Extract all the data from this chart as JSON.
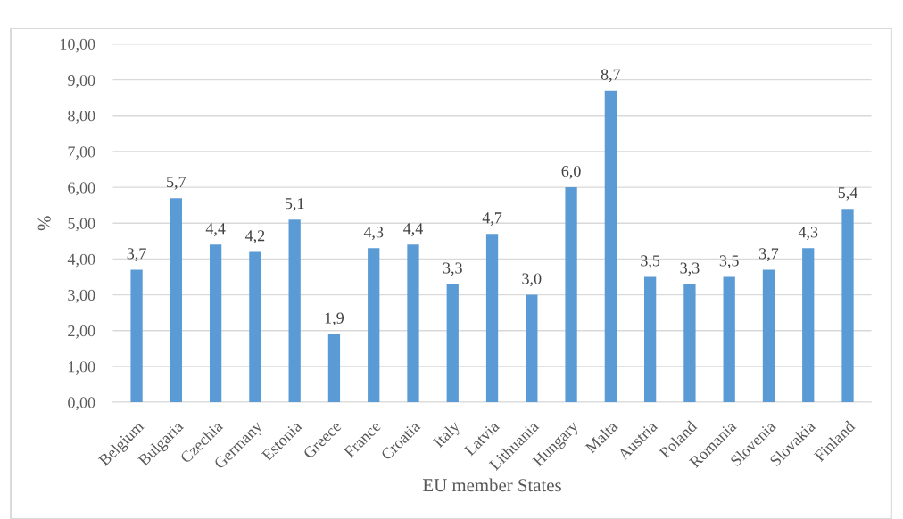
{
  "chart_data": {
    "type": "bar",
    "xlabel": "EU member States",
    "ylabel": "%",
    "categories": [
      "Belgium",
      "Bulgaria",
      "Czechia",
      "Germany",
      "Estonia",
      "Greece",
      "France",
      "Croatia",
      "Italy",
      "Latvia",
      "Lithuania",
      "Hungary",
      "Malta",
      "Austria",
      "Poland",
      "Romania",
      "Slovenia",
      "Slovakia",
      "Finland"
    ],
    "values": [
      3.7,
      5.7,
      4.4,
      4.2,
      5.1,
      1.9,
      4.3,
      4.4,
      3.3,
      4.7,
      3.0,
      6.0,
      8.7,
      3.5,
      3.3,
      3.5,
      3.7,
      4.3,
      5.4
    ],
    "value_labels": [
      "3,7",
      "5,7",
      "4,4",
      "4,2",
      "5,1",
      "1,9",
      "4,3",
      "4,4",
      "3,3",
      "4,7",
      "3,0",
      "6,0",
      "8,7",
      "3,5",
      "3,3",
      "3,5",
      "3,7",
      "4,3",
      "5,4"
    ],
    "color": "#5b9bd5",
    "ylim": [
      0,
      10
    ],
    "yticks": [
      {
        "value": 0,
        "label": "0,00"
      },
      {
        "value": 1,
        "label": "1,00"
      },
      {
        "value": 2,
        "label": "2,00"
      },
      {
        "value": 3,
        "label": "3,00"
      },
      {
        "value": 4,
        "label": "4,00"
      },
      {
        "value": 5,
        "label": "5,00"
      },
      {
        "value": 6,
        "label": "6,00"
      },
      {
        "value": 7,
        "label": "7,00"
      },
      {
        "value": 8,
        "label": "8,00"
      },
      {
        "value": 9,
        "label": "9,00"
      },
      {
        "value": 10,
        "label": "10,00"
      }
    ],
    "grid": "y",
    "legend": false
  }
}
